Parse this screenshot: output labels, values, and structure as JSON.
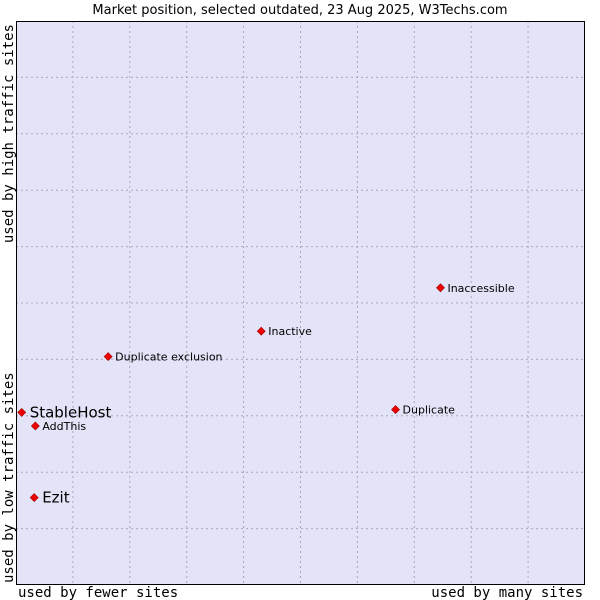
{
  "chart_data": {
    "type": "scatter",
    "title": "Market position, selected outdated, 23 Aug 2025, W3Techs.com",
    "xlabel_left": "used by fewer sites",
    "xlabel_right": "used by many sites",
    "ylabel_bottom": "used by low traffic sites",
    "ylabel_top": "used by high traffic sites",
    "grid": true,
    "background_color": "#e4e4f8",
    "grid_color": "#a8a8c0",
    "marker_color": "#ee0000",
    "xlim": [
      0,
      100
    ],
    "ylim": [
      0,
      100
    ],
    "points": [
      {
        "label": "StableHost",
        "x": 1.0,
        "y": 30.6,
        "highlight": true
      },
      {
        "label": "AddThis",
        "x": 3.4,
        "y": 28.2,
        "highlight": false
      },
      {
        "label": "Ezit",
        "x": 3.2,
        "y": 15.5,
        "highlight": true
      },
      {
        "label": "Duplicate exclusion",
        "x": 16.2,
        "y": 40.5,
        "highlight": false
      },
      {
        "label": "Inactive",
        "x": 43.1,
        "y": 45.0,
        "highlight": false
      },
      {
        "label": "Duplicate",
        "x": 66.7,
        "y": 31.1,
        "highlight": false
      },
      {
        "label": "Inaccessible",
        "x": 74.6,
        "y": 52.7,
        "highlight": false
      }
    ]
  }
}
